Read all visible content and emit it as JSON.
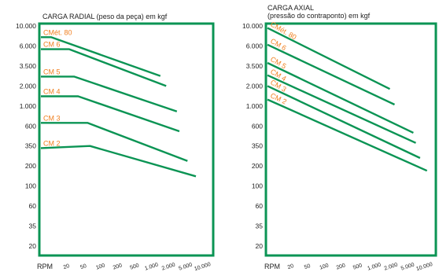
{
  "colors": {
    "frame": "#0b9454",
    "line": "#0b9454",
    "label": "#f07f1f",
    "text": "#222222"
  },
  "chart_data": [
    {
      "type": "line",
      "title": "CARGA RADIAL (peso da peça) em kgf",
      "x_axis_title": "RPM",
      "x_ticks": [
        "20",
        "50",
        "100",
        "200",
        "500",
        "1.000",
        "2.000",
        "5.000",
        "10.000"
      ],
      "y_ticks": [
        "10.000",
        "6.000",
        "3.500",
        "2.000",
        "1.000",
        "600",
        "350",
        "200",
        "100",
        "60",
        "35",
        "20"
      ],
      "series": [
        {
          "name": "CMét. 80",
          "points": [
            [
              17,
              7500
            ],
            [
              25,
              7500
            ],
            [
              1600,
              2650
            ]
          ]
        },
        {
          "name": "CM 6",
          "points": [
            [
              17,
              5500
            ],
            [
              50,
              5500
            ],
            [
              2000,
              2000
            ]
          ]
        },
        {
          "name": "CM 5",
          "points": [
            [
              17,
              2600
            ],
            [
              60,
              2600
            ],
            [
              3000,
              870
            ]
          ]
        },
        {
          "name": "CM 4",
          "points": [
            [
              17,
              1400
            ],
            [
              70,
              1400
            ],
            [
              3300,
              520
            ]
          ]
        },
        {
          "name": "CM 3",
          "points": [
            [
              17,
              650
            ],
            [
              100,
              650
            ],
            [
              4500,
              230
            ]
          ]
        },
        {
          "name": "CM 2",
          "points": [
            [
              17,
              330
            ],
            [
              110,
              350
            ],
            [
              6200,
              140
            ]
          ]
        }
      ]
    },
    {
      "type": "line",
      "title": "CARGA AXIAL",
      "subtitle": "(pressão do contraponto) em kgf",
      "x_axis_title": "RPM",
      "x_ticks": [
        "20",
        "50",
        "100",
        "200",
        "500",
        "1.000",
        "2.000",
        "5.000",
        "10.000"
      ],
      "y_ticks": [
        "10.000",
        "6.000",
        "3.500",
        "2.000",
        "1.000",
        "600",
        "350",
        "200",
        "100",
        "60",
        "35",
        "20"
      ],
      "series": [
        {
          "name": "CMét. 80",
          "points": [
            [
              17,
              9500
            ],
            [
              2000,
              1800
            ]
          ]
        },
        {
          "name": "CM 6",
          "points": [
            [
              17,
              6200
            ],
            [
              2400,
              1050
            ]
          ]
        },
        {
          "name": "CM 5",
          "points": [
            [
              17,
              3800
            ],
            [
              5000,
              500
            ]
          ]
        },
        {
          "name": "CM 4",
          "points": [
            [
              17,
              2700
            ],
            [
              5500,
              380
            ]
          ]
        },
        {
          "name": "CM 3",
          "points": [
            [
              17,
              2000
            ],
            [
              6500,
              250
            ]
          ]
        },
        {
          "name": "CM 2",
          "points": [
            [
              17,
              1250
            ],
            [
              8500,
              170
            ]
          ]
        }
      ]
    }
  ]
}
